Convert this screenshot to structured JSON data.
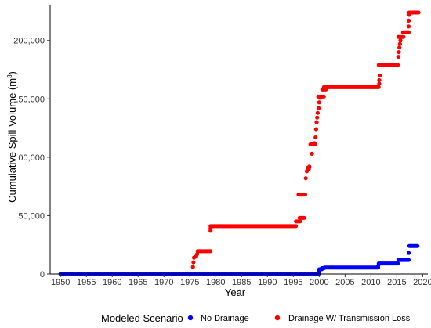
{
  "chart_data": {
    "type": "scatter",
    "xlabel": "Year",
    "ylabel": "Cumulative Spill Volume (m",
    "ylabel_sup": "3",
    "ylabel_close": ")",
    "xlim": [
      1948,
      2021
    ],
    "ylim": [
      0,
      230000
    ],
    "x_ticks": [
      1950,
      1955,
      1960,
      1965,
      1970,
      1975,
      1980,
      1985,
      1990,
      1995,
      2000,
      2005,
      2010,
      2015,
      2020
    ],
    "y_ticks": [
      0,
      50000,
      100000,
      150000,
      200000
    ],
    "y_tick_labels": [
      "0",
      "50,000",
      "100,000",
      "150,000",
      "200,000"
    ],
    "grid": false,
    "legend": {
      "position": "bottom",
      "title": "Modeled Scenario"
    },
    "series": [
      {
        "name": "No Drainage",
        "color": "#0000ff",
        "segments": [
          {
            "from": 1950,
            "to": 1999.9,
            "y": 0
          },
          {
            "from": 2000.0,
            "to": 2000.5,
            "y": 4000
          },
          {
            "from": 2000.5,
            "to": 2001.0,
            "y": 5000
          },
          {
            "from": 2001.0,
            "to": 2011.4,
            "y": 5500
          },
          {
            "from": 2011.5,
            "to": 2015.2,
            "y": 9000
          },
          {
            "from": 2015.3,
            "to": 2017.3,
            "y": 12000
          },
          {
            "from": 2017.4,
            "to": 2019.0,
            "y": 24000
          }
        ],
        "points": [
          [
            2000,
            1000
          ],
          [
            2000,
            2500
          ],
          [
            2011.4,
            7000
          ],
          [
            2017.3,
            18000
          ]
        ]
      },
      {
        "name": "Drainage W/ Transmission Loss",
        "color": "#ff0000",
        "segments": [
          {
            "from": 1950,
            "to": 1975.6,
            "y": 0
          },
          {
            "from": 1976.5,
            "to": 1979.0,
            "y": 19500
          },
          {
            "from": 1979.0,
            "to": 1995.5,
            "y": 41000
          },
          {
            "from": 1995.5,
            "to": 1996.3,
            "y": 45000
          },
          {
            "from": 1996.2,
            "to": 1997.1,
            "y": 48000
          },
          {
            "from": 1996.0,
            "to": 1997.3,
            "y": 68000
          },
          {
            "from": 1998.3,
            "to": 1999.2,
            "y": 111000
          },
          {
            "from": 1999.8,
            "to": 2000.9,
            "y": 152000
          },
          {
            "from": 2000.6,
            "to": 2001.3,
            "y": 158000
          },
          {
            "from": 2000.9,
            "to": 2011.5,
            "y": 160000
          },
          {
            "from": 2011.5,
            "to": 2015.2,
            "y": 179000
          },
          {
            "from": 2015.3,
            "to": 2016.3,
            "y": 203000
          },
          {
            "from": 2016.2,
            "to": 2017.3,
            "y": 207000
          },
          {
            "from": 2017.4,
            "to": 2019.2,
            "y": 224000
          }
        ],
        "points": [
          [
            1975.6,
            6000
          ],
          [
            1975.7,
            10000
          ],
          [
            1975.8,
            14000
          ],
          [
            1976.2,
            15000
          ],
          [
            1976.4,
            17000
          ],
          [
            1979.0,
            37000
          ],
          [
            1979.0,
            39000
          ],
          [
            1997.4,
            82000
          ],
          [
            1997.6,
            88000
          ],
          [
            1997.8,
            91000
          ],
          [
            1998.0,
            90000
          ],
          [
            1998.1,
            92000
          ],
          [
            1998.6,
            103000
          ],
          [
            1999.1,
            112000
          ],
          [
            1999.3,
            117000
          ],
          [
            1999.4,
            124000
          ],
          [
            1999.5,
            130000
          ],
          [
            1999.6,
            134000
          ],
          [
            1999.7,
            138000
          ],
          [
            1999.9,
            142000
          ],
          [
            2000.0,
            147000
          ],
          [
            2000.1,
            151000
          ],
          [
            2011.6,
            163000
          ],
          [
            2011.6,
            166000
          ],
          [
            2011.7,
            170000
          ],
          [
            2015.3,
            186000
          ],
          [
            2015.4,
            190000
          ],
          [
            2015.5,
            194000
          ],
          [
            2015.6,
            197000
          ],
          [
            2015.7,
            200000
          ],
          [
            2017.3,
            212000
          ],
          [
            2017.3,
            217000
          ],
          [
            2017.4,
            222000
          ]
        ]
      }
    ]
  }
}
